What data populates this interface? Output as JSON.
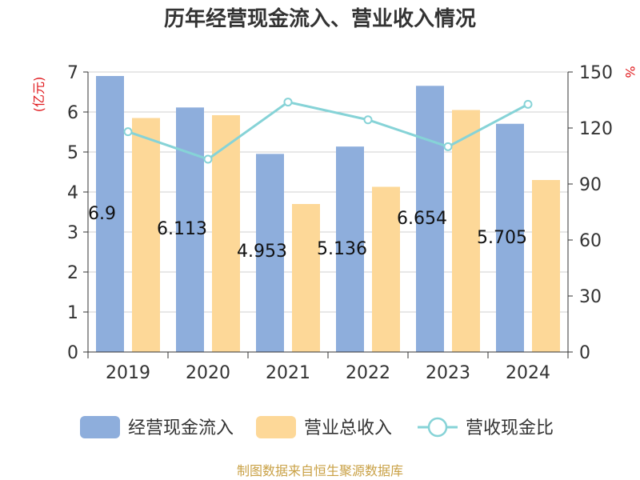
{
  "chart_data": {
    "type": "bar",
    "title": "历年经营现金流入、营业收入情况",
    "categories": [
      "2019",
      "2020",
      "2021",
      "2022",
      "2023",
      "2024"
    ],
    "series": [
      {
        "name": "经营现金流入",
        "type": "bar",
        "axis": "left",
        "color": "#8eaedc",
        "values": [
          6.9,
          6.113,
          4.953,
          5.136,
          6.654,
          5.705
        ]
      },
      {
        "name": "营业总收入",
        "type": "bar",
        "axis": "left",
        "color": "#fdd898",
        "values": [
          5.85,
          5.92,
          3.7,
          4.13,
          6.05,
          4.3
        ]
      },
      {
        "name": "营收现金比",
        "type": "line",
        "axis": "right",
        "color": "#86d3d7",
        "values": [
          118,
          103.3,
          133.9,
          124.4,
          110,
          132.7
        ]
      }
    ],
    "data_labels": [
      "6.9",
      "6.113",
      "4.953",
      "5.136",
      "6.654",
      "5.705"
    ],
    "y_left": {
      "label": "(亿元)",
      "ylim": [
        0,
        7
      ],
      "ticks": [
        "0",
        "1",
        "2",
        "3",
        "4",
        "5",
        "6",
        "7"
      ]
    },
    "y_right": {
      "label": "%",
      "ylim": [
        0,
        150
      ],
      "ticks": [
        "0",
        "30",
        "60",
        "90",
        "120",
        "150"
      ]
    },
    "grid": true,
    "legend_position": "bottom"
  },
  "source": "制图数据来自恒生聚源数据库"
}
